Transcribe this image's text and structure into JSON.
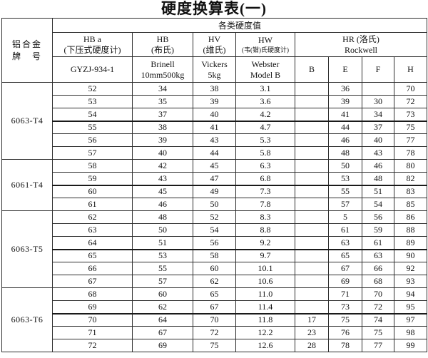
{
  "title": "硬度换算表(一)",
  "table": {
    "alloy_header": {
      "line1": "铝合金",
      "line2": "牌　号"
    },
    "top_header": "各类硬度值",
    "scale_headers": [
      {
        "name": "HB a",
        "cn": "(下压式硬度计)",
        "sub1": "GYZJ-934-1",
        "sub2": ""
      },
      {
        "name": "HB",
        "cn": "(布氏)",
        "sub1": "Brinell",
        "sub2": "10mm500kg"
      },
      {
        "name": "HV",
        "cn": "(维氏)",
        "sub1": "Vickers",
        "sub2": "5kg"
      },
      {
        "name": "HW",
        "cn": "(韦(钳)氏硬度计)",
        "sub1": "Webster",
        "sub2": "Model B"
      }
    ],
    "rockwell_header": {
      "name": "HR (洛氏)",
      "sub": "Rockwell",
      "scales": [
        "B",
        "E",
        "F",
        "H"
      ]
    },
    "groups": [
      {
        "label": "6063-T4",
        "rows": [
          {
            "c": [
              "52",
              "34",
              "38",
              "3.1",
              "",
              "36",
              "",
              "70"
            ],
            "heavy": false
          },
          {
            "c": [
              "53",
              "35",
              "39",
              "3.6",
              "",
              "39",
              "30",
              "72"
            ],
            "heavy": false
          },
          {
            "c": [
              "54",
              "37",
              "40",
              "4.2",
              "",
              "41",
              "34",
              "73"
            ],
            "heavy": true
          },
          {
            "c": [
              "55",
              "38",
              "41",
              "4.7",
              "",
              "44",
              "37",
              "75"
            ],
            "heavy": false
          },
          {
            "c": [
              "56",
              "39",
              "43",
              "5.3",
              "",
              "46",
              "40",
              "77"
            ],
            "heavy": false
          },
          {
            "c": [
              "57",
              "40",
              "44",
              "5.8",
              "",
              "48",
              "43",
              "78"
            ],
            "heavy": false
          }
        ]
      },
      {
        "label": "6061-T4",
        "rows": [
          {
            "c": [
              "58",
              "42",
              "45",
              "6.3",
              "",
              "50",
              "46",
              "80"
            ],
            "heavy": false
          },
          {
            "c": [
              "59",
              "43",
              "47",
              "6.8",
              "",
              "53",
              "48",
              "82"
            ],
            "heavy": true
          },
          {
            "c": [
              "60",
              "45",
              "49",
              "7.3",
              "",
              "55",
              "51",
              "83"
            ],
            "heavy": false
          },
          {
            "c": [
              "61",
              "46",
              "50",
              "7.8",
              "",
              "57",
              "54",
              "85"
            ],
            "heavy": false
          }
        ]
      },
      {
        "label": "6063-T5",
        "rows": [
          {
            "c": [
              "62",
              "48",
              "52",
              "8.3",
              "",
              "5",
              "56",
              "86"
            ],
            "heavy": false
          },
          {
            "c": [
              "63",
              "50",
              "54",
              "8.8",
              "",
              "61",
              "59",
              "88"
            ],
            "heavy": false
          },
          {
            "c": [
              "64",
              "51",
              "56",
              "9.2",
              "",
              "63",
              "61",
              "89"
            ],
            "heavy": true
          },
          {
            "c": [
              "65",
              "53",
              "58",
              "9.7",
              "",
              "65",
              "63",
              "90"
            ],
            "heavy": false
          },
          {
            "c": [
              "66",
              "55",
              "60",
              "10.1",
              "",
              "67",
              "66",
              "92"
            ],
            "heavy": false
          },
          {
            "c": [
              "67",
              "57",
              "62",
              "10.6",
              "",
              "69",
              "68",
              "93"
            ],
            "heavy": false
          }
        ]
      },
      {
        "label": "6063-T6",
        "rows": [
          {
            "c": [
              "68",
              "60",
              "65",
              "11.0",
              "",
              "71",
              "70",
              "94"
            ],
            "heavy": false
          },
          {
            "c": [
              "69",
              "62",
              "67",
              "11.4",
              "",
              "73",
              "72",
              "95"
            ],
            "heavy": true
          },
          {
            "c": [
              "70",
              "64",
              "70",
              "11.8",
              "17",
              "75",
              "74",
              "97"
            ],
            "heavy": false
          },
          {
            "c": [
              "71",
              "67",
              "72",
              "12.2",
              "23",
              "76",
              "75",
              "98"
            ],
            "heavy": false
          },
          {
            "c": [
              "72",
              "69",
              "75",
              "12.6",
              "28",
              "78",
              "77",
              "99"
            ],
            "heavy": false
          }
        ]
      }
    ]
  }
}
